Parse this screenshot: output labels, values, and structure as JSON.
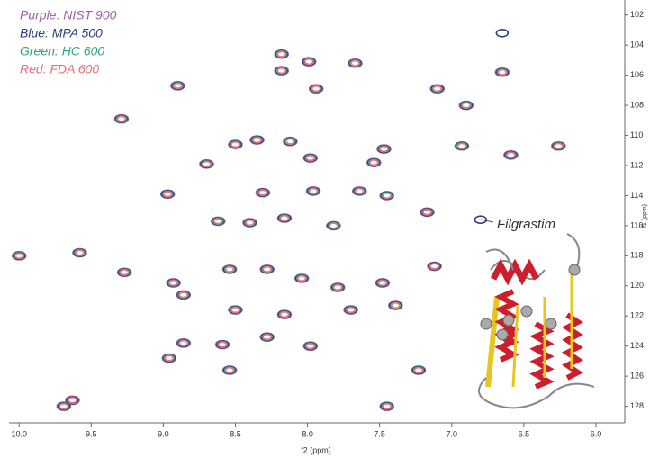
{
  "chart_data": {
    "type": "scatter",
    "x_label": "f2 (ppm)",
    "y_label": "f1 (ppm)",
    "annotation": "Filgrastim",
    "xlim": [
      10.07,
      5.8
    ],
    "ylim": [
      129.1,
      101
    ],
    "xticks": [
      {
        "value": 10,
        "label": "10.0"
      },
      9.5,
      {
        "value": 9,
        "label": "9.0"
      },
      8.5,
      {
        "value": 8,
        "label": "8.0"
      },
      7.5,
      {
        "value": 7,
        "label": "7.0"
      },
      6.5,
      {
        "value": 6,
        "label": "6.0"
      }
    ],
    "yticks": [
      102,
      104,
      106,
      108,
      110,
      112,
      114,
      116,
      118,
      120,
      122,
      124,
      126,
      128
    ],
    "x": [
      8.18,
      8.18,
      7.99,
      7.67,
      8.9,
      7.94,
      7.1,
      9.29,
      6.9,
      6.65,
      8.35,
      8.5,
      8.12,
      7.98,
      8.7,
      7.47,
      7.54,
      6.93,
      6.59,
      6.26,
      8.97,
      8.31,
      7.96,
      7.64,
      7.45,
      8.62,
      8.4,
      8.16,
      7.82,
      7.17,
      10.0,
      9.58,
      9.27,
      8.93,
      8.54,
      8.28,
      8.04,
      7.79,
      7.48,
      7.12,
      8.86,
      8.5,
      8.16,
      7.7,
      7.39,
      8.28,
      7.98,
      8.86,
      8.59,
      8.96,
      8.54,
      7.23,
      9.69,
      9.63,
      7.45,
      6.65,
      6.8
    ],
    "series": [
      {
        "name": "Purple: NIST 900",
        "color": "#a35eaa",
        "values": [
          104.6,
          105.7,
          105.1,
          105.2,
          106.7,
          106.9,
          106.9,
          108.9,
          108.0,
          105.8,
          110.3,
          110.6,
          110.4,
          111.5,
          111.9,
          110.9,
          111.8,
          110.7,
          111.3,
          110.7,
          113.9,
          113.8,
          113.7,
          113.7,
          114.0,
          115.7,
          115.8,
          115.5,
          116.0,
          115.1,
          118.0,
          117.8,
          119.1,
          119.8,
          118.9,
          118.9,
          119.5,
          120.1,
          119.8,
          118.7,
          120.6,
          121.6,
          121.9,
          121.6,
          121.3,
          123.4,
          124.0,
          123.8,
          123.9,
          124.8,
          125.6,
          125.6,
          128.0,
          127.6,
          128.0,
          null,
          null
        ]
      },
      {
        "name": "Blue: MPA 500",
        "color": "#2e3d80",
        "values": [
          104.6,
          105.7,
          105.1,
          105.2,
          106.7,
          106.9,
          106.9,
          108.9,
          108.0,
          105.8,
          110.3,
          110.6,
          110.4,
          111.5,
          111.9,
          110.9,
          111.8,
          110.7,
          111.3,
          110.7,
          113.9,
          113.8,
          113.7,
          113.7,
          114.0,
          115.7,
          115.8,
          115.5,
          116.0,
          115.1,
          118.0,
          117.8,
          119.1,
          119.8,
          118.9,
          118.9,
          119.5,
          120.1,
          119.8,
          118.7,
          120.6,
          121.6,
          121.9,
          121.6,
          121.3,
          123.4,
          124.0,
          123.8,
          123.9,
          124.8,
          125.6,
          125.6,
          128.0,
          127.6,
          128.0,
          103.2,
          115.6
        ]
      },
      {
        "name": "Green: HC 600",
        "color": "#2fa47b",
        "values": [
          104.6,
          105.7,
          105.1,
          105.2,
          106.7,
          106.9,
          106.9,
          108.9,
          108.0,
          105.8,
          110.3,
          110.6,
          110.4,
          111.5,
          111.9,
          110.9,
          111.8,
          110.7,
          111.3,
          110.7,
          113.9,
          113.8,
          113.7,
          113.7,
          114.0,
          115.7,
          115.8,
          115.5,
          116.0,
          115.1,
          118.0,
          117.8,
          119.1,
          119.8,
          118.9,
          118.9,
          119.5,
          120.1,
          119.8,
          118.7,
          120.6,
          121.6,
          121.9,
          121.6,
          121.3,
          123.4,
          124.0,
          123.8,
          123.9,
          124.8,
          125.6,
          125.6,
          128.0,
          127.6,
          128.0,
          null,
          null
        ]
      },
      {
        "name": "Red:  FDA 600",
        "color": "#ea6f79",
        "values": [
          104.6,
          105.7,
          105.1,
          105.2,
          106.7,
          106.9,
          106.9,
          108.9,
          108.0,
          105.8,
          110.3,
          110.6,
          110.4,
          111.5,
          111.9,
          110.9,
          111.8,
          110.7,
          111.3,
          110.7,
          113.9,
          113.8,
          113.7,
          113.7,
          114.0,
          115.7,
          115.8,
          115.5,
          116.0,
          115.1,
          118.0,
          117.8,
          119.1,
          119.8,
          118.9,
          118.9,
          119.5,
          120.1,
          119.8,
          118.7,
          120.6,
          121.6,
          121.9,
          121.6,
          121.3,
          123.4,
          124.0,
          123.8,
          123.9,
          124.8,
          125.6,
          125.6,
          128.0,
          127.6,
          128.0,
          null,
          null
        ]
      }
    ]
  }
}
